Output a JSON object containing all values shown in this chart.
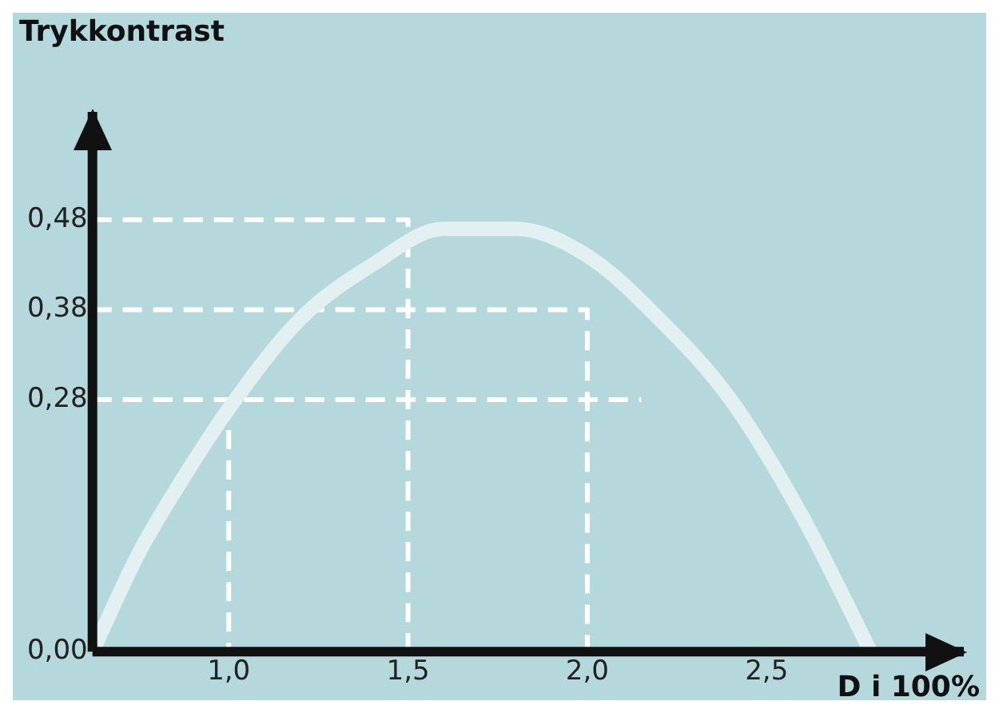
{
  "chart_data": {
    "type": "line",
    "ylabel": "Trykkontrast",
    "xlabel": "D i 100%",
    "xlim": [
      0.62,
      3.05
    ],
    "ylim": [
      0,
      0.6
    ],
    "xticks": [
      {
        "value": 1,
        "label": "1,0"
      },
      {
        "value": 1.5,
        "label": "1,5"
      },
      {
        "value": 2,
        "label": "2,0"
      },
      {
        "value": 2.5,
        "label": "2,5"
      }
    ],
    "yticks": [
      {
        "value": 0,
        "label": "0,00"
      },
      {
        "value": 0.28,
        "label": "0,28"
      },
      {
        "value": 0.38,
        "label": "0,38"
      },
      {
        "value": 0.48,
        "label": "0,48"
      }
    ],
    "grid": false,
    "legend": false,
    "marker": "none",
    "series": [
      {
        "color": "#e3f0f1",
        "line_style": "solid",
        "x": [
          0.62,
          0.75,
          0.9,
          1.0,
          1.2,
          1.4,
          1.6,
          1.8,
          2.0,
          2.2,
          2.4,
          2.6,
          2.79
        ],
        "values": [
          0,
          0.11,
          0.21,
          0.27,
          0.37,
          0.43,
          0.47,
          0.47,
          0.44,
          0.37,
          0.28,
          0.15,
          0
        ]
      },
      {
        "color": "#ffffff",
        "line_style": "dashed",
        "x": [
          0.62,
          1.5,
          1.5
        ],
        "values": [
          0.48,
          0.48,
          0
        ]
      },
      {
        "color": "#ffffff",
        "line_style": "dashed",
        "x": [
          0.62,
          2.0,
          2.0
        ],
        "values": [
          0.38,
          0.38,
          0
        ]
      },
      {
        "color": "#ffffff",
        "line_style": "dashed",
        "x": [
          0.62,
          2.15
        ],
        "values": [
          0.28,
          0.28
        ]
      },
      {
        "color": "#ffffff",
        "line_style": "dashed",
        "x": [
          1.0,
          1.0
        ],
        "values": [
          0.28,
          0
        ]
      }
    ]
  }
}
